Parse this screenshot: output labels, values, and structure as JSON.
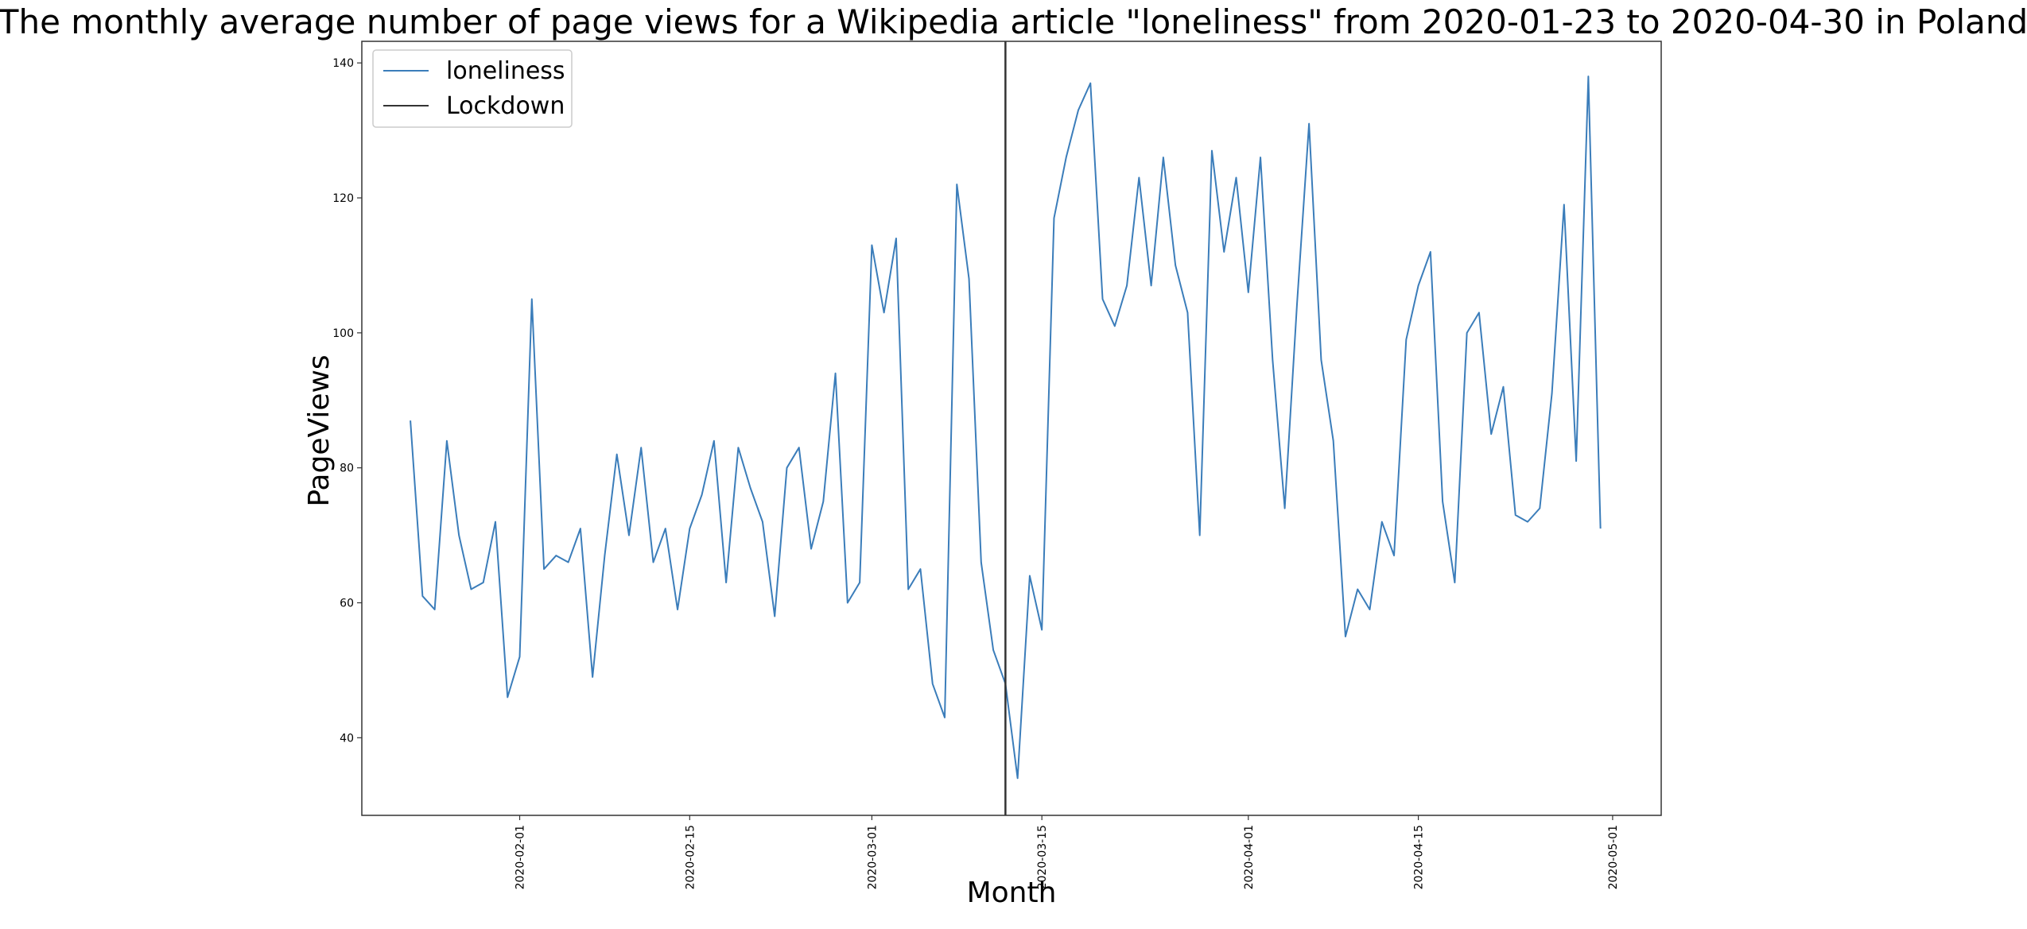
{
  "chart_data": {
    "type": "line",
    "title": "The monthly average number of page views for a Wikipedia article \"loneliness\" from 2020-01-23 to 2020-04-30 in Poland",
    "xlabel": "Month",
    "ylabel": "PageViews",
    "x_start": "2020-01-23",
    "xlim": [
      "2020-01-19",
      "2020-05-05"
    ],
    "ylim": [
      28.5,
      143.2
    ],
    "yticks": [
      40,
      60,
      80,
      100,
      120,
      140
    ],
    "xticks": [
      "2020-02-01",
      "2020-02-15",
      "2020-03-01",
      "2020-03-15",
      "2020-04-01",
      "2020-04-15",
      "2020-05-01"
    ],
    "grid": false,
    "legend_position": "top-left",
    "series": [
      {
        "name": "loneliness",
        "color": "#3b7dba",
        "values": [
          87,
          61,
          59,
          84,
          70,
          62,
          63,
          72,
          46,
          52,
          105,
          65,
          67,
          66,
          71,
          49,
          67,
          82,
          70,
          83,
          66,
          71,
          59,
          71,
          76,
          84,
          63,
          83,
          77,
          72,
          58,
          80,
          83,
          68,
          75,
          94,
          60,
          63,
          113,
          103,
          114,
          62,
          65,
          48,
          43,
          122,
          108,
          66,
          53,
          48,
          34,
          64,
          56,
          117,
          126,
          133,
          137,
          105,
          101,
          107,
          123,
          107,
          126,
          110,
          103,
          70,
          127,
          112,
          123,
          106,
          126,
          96,
          74,
          104,
          131,
          96,
          84,
          55,
          62,
          59,
          72,
          67,
          99,
          107,
          112,
          75,
          63,
          100,
          103,
          85,
          92,
          73,
          72,
          74,
          91,
          119,
          81,
          138,
          71
        ]
      }
    ],
    "vline": {
      "name": "Lockdown",
      "x": "2020-03-12",
      "color": "#333333"
    }
  }
}
